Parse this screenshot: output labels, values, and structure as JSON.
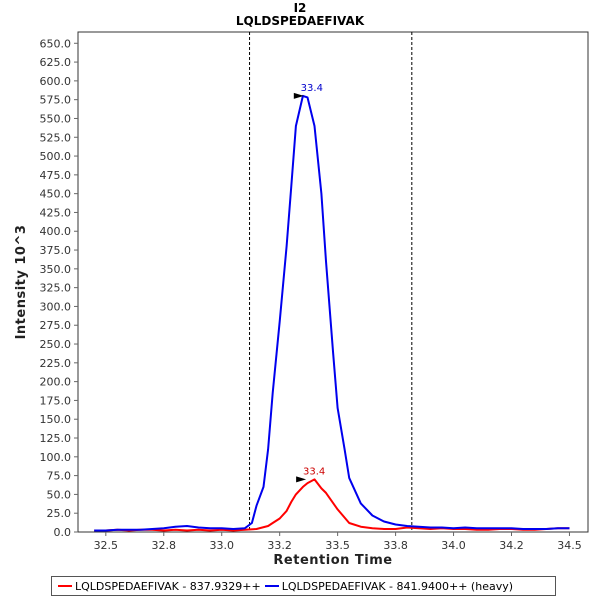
{
  "chart_data": {
    "type": "line",
    "title": "I2",
    "subtitle": "LQLDSPEDAEFIVAK",
    "xlabel": "Retention Time",
    "ylabel": "Intensity 10^3",
    "xlim": [
      32.38,
      34.58
    ],
    "ylim": [
      0,
      665
    ],
    "x_ticks": [
      "32.5",
      "32.8",
      "33.0",
      "33.2",
      "33.5",
      "33.8",
      "34.0",
      "34.2",
      "34.5"
    ],
    "x_tick_values": [
      32.5,
      32.75,
      33.0,
      33.25,
      33.5,
      33.75,
      34.0,
      34.25,
      34.5
    ],
    "y_ticks": [
      "0.0",
      "25.0",
      "50.0",
      "75.0",
      "100.0",
      "125.0",
      "150.0",
      "175.0",
      "200.0",
      "225.0",
      "250.0",
      "275.0",
      "300.0",
      "325.0",
      "350.0",
      "375.0",
      "400.0",
      "425.0",
      "450.0",
      "475.0",
      "500.0",
      "525.0",
      "550.0",
      "575.0",
      "600.0",
      "625.0",
      "650.0"
    ],
    "y_tick_values": [
      0,
      25,
      50,
      75,
      100,
      125,
      150,
      175,
      200,
      225,
      250,
      275,
      300,
      325,
      350,
      375,
      400,
      425,
      450,
      475,
      500,
      525,
      550,
      575,
      600,
      625,
      650
    ],
    "boundaries": [
      33.12,
      33.82
    ],
    "grid": false,
    "legend_position": "bottom",
    "series": [
      {
        "name": "LQLDSPEDAEFIVAK - 837.9329++",
        "color": "#ff0000",
        "x": [
          32.45,
          32.5,
          32.55,
          32.6,
          32.65,
          32.7,
          32.75,
          32.8,
          32.85,
          32.9,
          32.95,
          33.0,
          33.05,
          33.1,
          33.15,
          33.2,
          33.22,
          33.25,
          33.28,
          33.3,
          33.32,
          33.35,
          33.37,
          33.4,
          33.43,
          33.45,
          33.5,
          33.55,
          33.6,
          33.65,
          33.7,
          33.75,
          33.8,
          33.85,
          33.9,
          33.95,
          34.0,
          34.05,
          34.1,
          34.15,
          34.2,
          34.25,
          34.3,
          34.35,
          34.4,
          34.45,
          34.5
        ],
        "y": [
          2,
          2,
          3,
          2,
          3,
          3,
          2,
          3,
          2,
          3,
          2,
          3,
          2,
          3,
          4,
          8,
          12,
          18,
          28,
          40,
          50,
          60,
          65,
          70,
          58,
          52,
          30,
          12,
          7,
          5,
          4,
          4,
          6,
          5,
          4,
          5,
          4,
          4,
          3,
          3,
          4,
          4,
          3,
          3,
          4,
          5,
          5
        ]
      },
      {
        "name": "LQLDSPEDAEFIVAK - 841.9400++ (heavy)",
        "color": "#0000ee",
        "x": [
          32.45,
          32.5,
          32.55,
          32.6,
          32.65,
          32.7,
          32.75,
          32.8,
          32.85,
          32.9,
          32.95,
          33.0,
          33.05,
          33.1,
          33.13,
          33.15,
          33.18,
          33.2,
          33.22,
          33.25,
          33.28,
          33.3,
          33.32,
          33.35,
          33.37,
          33.4,
          33.43,
          33.45,
          33.48,
          33.5,
          33.53,
          33.55,
          33.6,
          33.65,
          33.7,
          33.75,
          33.8,
          33.85,
          33.9,
          33.95,
          34.0,
          34.05,
          34.1,
          34.15,
          34.2,
          34.25,
          34.3,
          34.35,
          34.4,
          34.45,
          34.5
        ],
        "y": [
          2,
          2,
          3,
          3,
          3,
          4,
          5,
          7,
          8,
          6,
          5,
          5,
          4,
          5,
          12,
          35,
          60,
          110,
          185,
          280,
          380,
          460,
          540,
          580,
          578,
          540,
          450,
          360,
          240,
          165,
          110,
          72,
          38,
          22,
          14,
          10,
          8,
          7,
          6,
          6,
          5,
          6,
          5,
          5,
          5,
          5,
          4,
          4,
          4,
          5,
          5
        ]
      }
    ],
    "annotations": [
      {
        "text": "33.4",
        "x": 33.38,
        "y": 580,
        "color": "#0000cc"
      },
      {
        "text": "33.4",
        "x": 33.39,
        "y": 70,
        "color": "#cc0000"
      }
    ]
  }
}
